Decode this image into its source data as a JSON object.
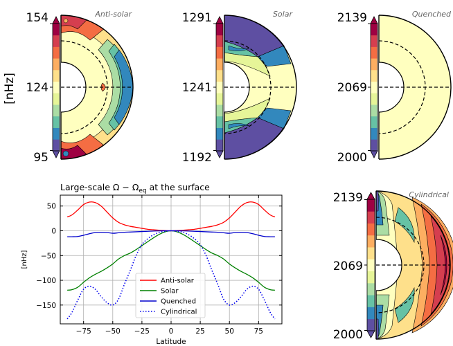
{
  "colors": {
    "cmap": [
      "#5e4fa2",
      "#3288bd",
      "#66c2a5",
      "#abdda4",
      "#e6f598",
      "#ffffbf",
      "#fee08b",
      "#fdae61",
      "#f46d43",
      "#d53e4f",
      "#9e0142"
    ],
    "antisolar": "#ff0000",
    "solar": "#008000",
    "quenched": "#0000cc",
    "cylindrical": "#0000ee",
    "grid": "#b0b0b0"
  },
  "colorbar_unit": "[nHz]",
  "panels": [
    {
      "title": "Anti-solar",
      "ticks": [
        "154",
        "124",
        "95"
      ]
    },
    {
      "title": "Solar",
      "ticks": [
        "1291",
        "1241",
        "1192"
      ]
    },
    {
      "title": "Quenched",
      "ticks": [
        "2139",
        "2069",
        "2000"
      ]
    },
    {
      "title": "Cylindrical",
      "ticks": [
        "2139",
        "2069",
        "2000"
      ]
    }
  ],
  "chart_data": {
    "type": "line",
    "title": "Large-scale Ω − Ω_eq at the surface",
    "title_parts": {
      "main": "Large-scale Ω − Ω",
      "sub": "eq",
      "tail": " at the surface"
    },
    "xlabel": "Latitude",
    "ylabel": "[nHz]",
    "xlim": [
      -95,
      95
    ],
    "ylim": [
      -188,
      72
    ],
    "xticks": [
      -75,
      -50,
      -25,
      0,
      25,
      50,
      75
    ],
    "xtick_labels": [
      "−75",
      "−50",
      "−25",
      "0",
      "25",
      "50",
      "75"
    ],
    "yticks": [
      50,
      0,
      -50,
      -100,
      -150
    ],
    "ytick_labels": [
      "50",
      "0",
      "−50",
      "−100",
      "−150"
    ],
    "grid": true,
    "legend_position": "lower-center",
    "x": [
      -89,
      -85,
      -80,
      -75,
      -70,
      -65,
      -60,
      -55,
      -50,
      -45,
      -40,
      -35,
      -30,
      -25,
      -20,
      -15,
      -10,
      -5,
      0,
      5,
      10,
      15,
      20,
      25,
      30,
      35,
      40,
      45,
      50,
      55,
      60,
      65,
      70,
      75,
      80,
      85,
      89
    ],
    "series": [
      {
        "name": "Anti-solar",
        "style": "solid",
        "values": [
          28,
          32,
          42,
          53,
          58,
          57,
          50,
          38,
          26,
          17,
          12,
          9,
          7,
          5,
          3,
          2,
          1,
          0.5,
          0,
          0.5,
          1,
          2,
          3,
          5,
          7,
          9,
          12,
          17,
          26,
          38,
          50,
          57,
          58,
          53,
          42,
          32,
          28
        ]
      },
      {
        "name": "Solar",
        "style": "solid",
        "values": [
          -120,
          -119,
          -114,
          -104,
          -95,
          -88,
          -82,
          -75,
          -67,
          -57,
          -50,
          -45,
          -38,
          -30,
          -22,
          -14,
          -7,
          -2,
          0,
          -2,
          -7,
          -14,
          -22,
          -30,
          -38,
          -45,
          -50,
          -57,
          -67,
          -75,
          -82,
          -88,
          -95,
          -104,
          -114,
          -119,
          -120
        ]
      },
      {
        "name": "Quenched",
        "style": "solid",
        "values": [
          -12,
          -12,
          -11.5,
          -9,
          -6,
          -3.5,
          -3,
          -3.5,
          -5,
          -4,
          -3,
          -2.5,
          -2,
          -1.5,
          -1,
          -0.5,
          -0.2,
          0,
          0,
          0,
          -0.2,
          -0.5,
          -1,
          -1.5,
          -2,
          -2.5,
          -3,
          -4,
          -5,
          -3.5,
          -3,
          -3.5,
          -6,
          -9,
          -11.5,
          -12,
          -12
        ]
      },
      {
        "name": "Cylindrical",
        "style": "dotted",
        "values": [
          -178,
          -165,
          -140,
          -118,
          -112,
          -118,
          -133,
          -145,
          -150,
          -138,
          -108,
          -80,
          -50,
          -28,
          -16,
          -8,
          -3,
          -1,
          0,
          -1,
          -3,
          -8,
          -16,
          -28,
          -50,
          -80,
          -108,
          -138,
          -150,
          -145,
          -133,
          -118,
          -112,
          -118,
          -140,
          -165,
          -178
        ]
      }
    ]
  }
}
